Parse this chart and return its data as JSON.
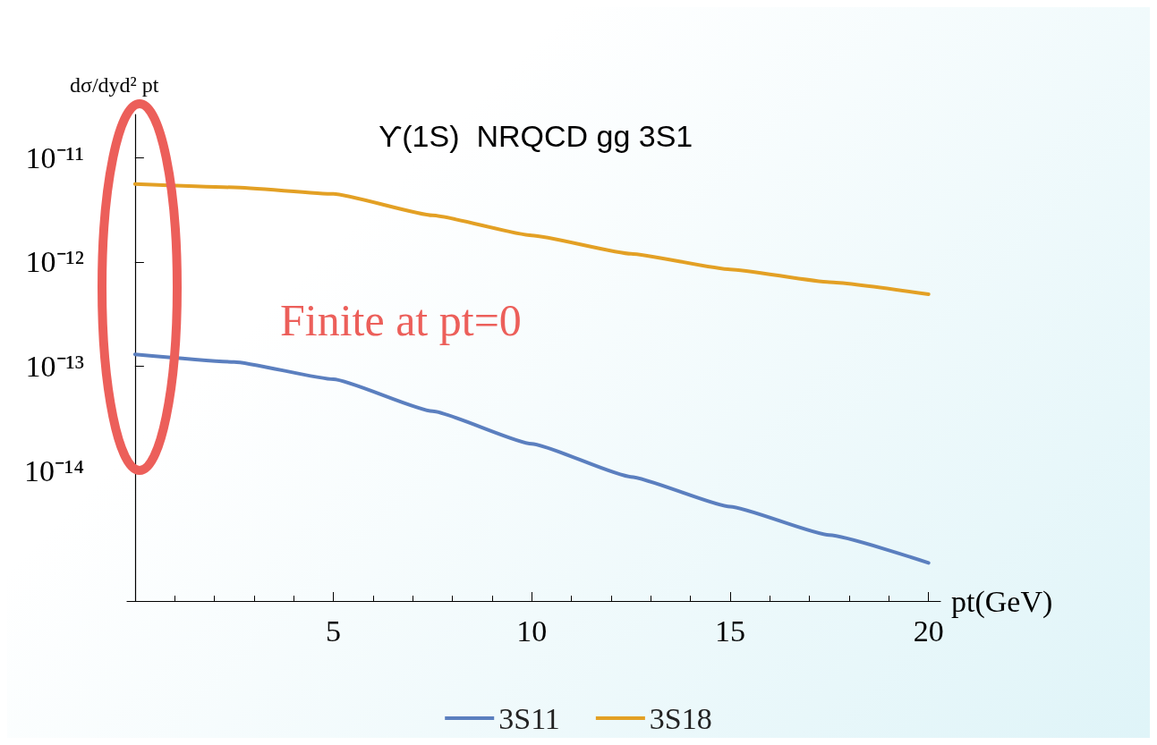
{
  "chart_data": {
    "type": "line",
    "title": "ϒ(1S)  NRQCD gg 3S1",
    "xlabel": "pt(GeV)",
    "ylabel": "dσ/dyd² pt",
    "annotations": [
      "Finite at pt=0"
    ],
    "log": "y",
    "legend": "bottom",
    "line_style": "solid",
    "marker": "none",
    "grid": false,
    "x": [
      0,
      2.5,
      5,
      7.5,
      10,
      12.5,
      15,
      17.5,
      20
    ],
    "xlim": [
      -0.2,
      20.3
    ],
    "xticks": [
      5,
      10,
      15,
      20
    ],
    "ylim": [
      5.6e-16,
      2.6e-11
    ],
    "yticks": [
      {
        "value": 1e-11,
        "label": "10⁻¹¹"
      },
      {
        "value": 1e-12,
        "label": "10⁻¹²"
      },
      {
        "value": 1e-13,
        "label": "10⁻¹³"
      },
      {
        "value": 1e-14,
        "label": "10⁻¹⁴"
      }
    ],
    "series": [
      {
        "name": "3S11",
        "color": "#5b7fbf",
        "values": [
          1.3e-13,
          1.1e-13,
          7.5e-14,
          3.7e-14,
          1.8e-14,
          8.7e-15,
          4.5e-15,
          2.4e-15,
          1.3e-15
        ]
      },
      {
        "name": "3S18",
        "color": "#e3a024",
        "values": [
          5.6e-12,
          5.2e-12,
          4.5e-12,
          2.8e-12,
          1.8e-12,
          1.2e-12,
          8.5e-13,
          6.4e-13,
          4.9e-13
        ]
      }
    ]
  }
}
